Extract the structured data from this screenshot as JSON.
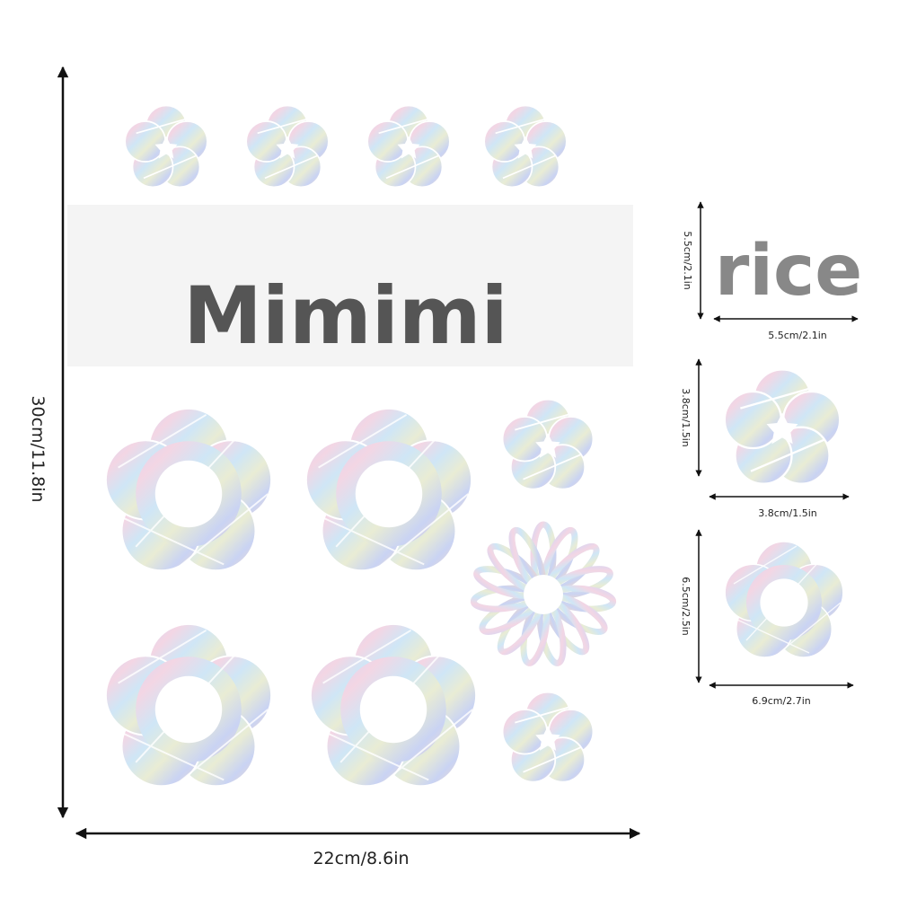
{
  "banner": {
    "text": "Mimimi"
  },
  "watermark": "rice",
  "dimensions": {
    "height": "30cm/11.8in",
    "width": "22cm/8.6in",
    "samples": [
      {
        "height": "5.5cm/2.1in",
        "width": "5.5cm/2.1in"
      },
      {
        "height": "3.8cm/1.5in",
        "width": "3.8cm/1.5in"
      },
      {
        "height": "6.5cm/2.5in",
        "width": "6.9cm/2.7in"
      }
    ]
  }
}
